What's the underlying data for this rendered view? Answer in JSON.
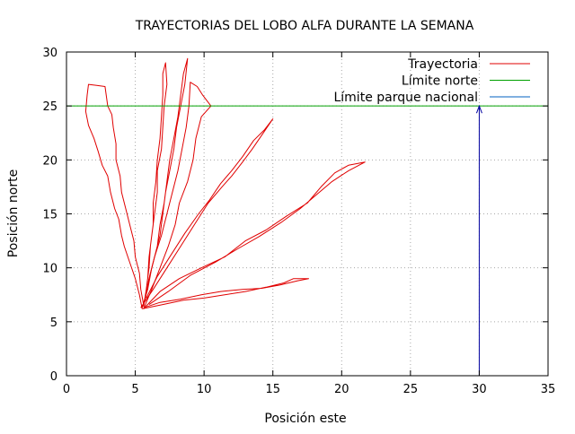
{
  "chart_data": {
    "type": "line",
    "title": "TRAYECTORIAS DEL LOBO ALFA DURANTE LA SEMANA",
    "xlabel": "Posición este",
    "ylabel": "Posición norte",
    "xlim": [
      0,
      35
    ],
    "ylim": [
      0,
      30
    ],
    "xticks": [
      0,
      5,
      10,
      15,
      20,
      25,
      30,
      35
    ],
    "yticks": [
      0,
      5,
      10,
      15,
      20,
      25,
      30
    ],
    "grid": true,
    "legend_position": "top-right",
    "legend": [
      {
        "label": "Trayectoria",
        "color": "#e00000"
      },
      {
        "label": "Límite norte",
        "color": "#00a000"
      },
      {
        "label": "Límite parque nacional",
        "color": "#0060c0"
      }
    ],
    "series": [
      {
        "name": "Trayectoria",
        "color": "#e00000",
        "paths": [
          [
            [
              5.5,
              6.2
            ],
            [
              5.3,
              7.5
            ],
            [
              5.0,
              9.0
            ],
            [
              4.6,
              10.5
            ],
            [
              4.2,
              12.0
            ],
            [
              4.0,
              13.0
            ],
            [
              3.8,
              14.5
            ],
            [
              3.5,
              15.5
            ],
            [
              3.2,
              17.0
            ],
            [
              3.0,
              18.5
            ],
            [
              2.6,
              19.5
            ],
            [
              2.3,
              20.8
            ],
            [
              2.0,
              22.0
            ],
            [
              1.6,
              23.2
            ],
            [
              1.4,
              24.5
            ],
            [
              1.5,
              26.0
            ],
            [
              1.6,
              27.0
            ],
            [
              2.2,
              26.9
            ],
            [
              2.8,
              26.8
            ],
            [
              3.0,
              25.0
            ],
            [
              3.3,
              24.2
            ],
            [
              3.4,
              23.0
            ],
            [
              3.6,
              21.5
            ],
            [
              3.6,
              20.0
            ],
            [
              3.9,
              18.5
            ],
            [
              4.0,
              17.0
            ],
            [
              4.3,
              15.5
            ],
            [
              4.6,
              14.0
            ],
            [
              4.9,
              12.5
            ],
            [
              5.0,
              11.0
            ],
            [
              5.3,
              9.5
            ],
            [
              5.4,
              8.0
            ],
            [
              5.6,
              6.6
            ]
          ],
          [
            [
              5.6,
              6.4
            ],
            [
              5.8,
              8.0
            ],
            [
              6.0,
              10.0
            ],
            [
              6.1,
              12.0
            ],
            [
              6.3,
              14.0
            ],
            [
              6.3,
              16.0
            ],
            [
              6.5,
              18.0
            ],
            [
              6.6,
              20.0
            ],
            [
              6.8,
              22.0
            ],
            [
              6.9,
              24.0
            ],
            [
              7.0,
              26.0
            ],
            [
              7.0,
              28.0
            ],
            [
              7.2,
              29.0
            ],
            [
              7.3,
              27.0
            ],
            [
              7.1,
              25.0
            ],
            [
              7.0,
              23.0
            ],
            [
              6.9,
              21.0
            ],
            [
              6.6,
              19.0
            ],
            [
              6.6,
              17.0
            ],
            [
              6.4,
              15.0
            ],
            [
              6.2,
              13.0
            ],
            [
              6.0,
              11.0
            ],
            [
              5.9,
              9.0
            ],
            [
              5.7,
              7.0
            ]
          ],
          [
            [
              5.5,
              6.3
            ],
            [
              5.9,
              8.0
            ],
            [
              6.2,
              10.0
            ],
            [
              6.6,
              12.0
            ],
            [
              6.8,
              14.0
            ],
            [
              7.1,
              16.0
            ],
            [
              7.3,
              18.0
            ],
            [
              7.5,
              20.0
            ],
            [
              7.8,
              22.0
            ],
            [
              8.1,
              24.0
            ],
            [
              8.3,
              26.0
            ],
            [
              8.5,
              28.0
            ],
            [
              8.8,
              29.4
            ],
            [
              8.6,
              27.0
            ],
            [
              8.3,
              25.0
            ],
            [
              8.0,
              23.0
            ],
            [
              7.8,
              21.0
            ],
            [
              7.5,
              19.0
            ],
            [
              7.2,
              17.0
            ],
            [
              7.0,
              15.0
            ],
            [
              6.8,
              13.0
            ],
            [
              6.4,
              11.0
            ],
            [
              6.0,
              9.0
            ],
            [
              5.7,
              7.0
            ]
          ],
          [
            [
              5.6,
              6.2
            ],
            [
              6.2,
              8.0
            ],
            [
              6.8,
              10.0
            ],
            [
              7.4,
              12.0
            ],
            [
              7.9,
              14.0
            ],
            [
              8.2,
              16.0
            ],
            [
              8.8,
              18.0
            ],
            [
              9.2,
              20.0
            ],
            [
              9.4,
              22.0
            ],
            [
              9.8,
              24.0
            ],
            [
              10.5,
              25.0
            ],
            [
              9.9,
              26.0
            ],
            [
              9.5,
              26.8
            ],
            [
              9.0,
              27.2
            ],
            [
              8.9,
              25.0
            ],
            [
              8.7,
              23.0
            ],
            [
              8.4,
              21.0
            ],
            [
              8.1,
              19.0
            ],
            [
              7.7,
              17.0
            ],
            [
              7.3,
              15.0
            ],
            [
              6.9,
              13.0
            ],
            [
              6.4,
              11.0
            ],
            [
              6.0,
              9.0
            ],
            [
              5.7,
              7.0
            ]
          ],
          [
            [
              5.4,
              6.3
            ],
            [
              6.3,
              8.0
            ],
            [
              7.3,
              10.0
            ],
            [
              8.3,
              12.0
            ],
            [
              9.3,
              14.0
            ],
            [
              10.3,
              16.0
            ],
            [
              11.3,
              17.5
            ],
            [
              12.0,
              18.5
            ],
            [
              12.8,
              19.8
            ],
            [
              13.5,
              21.0
            ],
            [
              14.3,
              22.5
            ],
            [
              15.0,
              23.8
            ],
            [
              14.4,
              22.8
            ],
            [
              13.6,
              21.8
            ],
            [
              12.8,
              20.3
            ],
            [
              12.0,
              19.0
            ],
            [
              11.2,
              17.8
            ],
            [
              10.4,
              16.3
            ],
            [
              9.6,
              15.0
            ],
            [
              8.6,
              13.2
            ],
            [
              7.6,
              11.2
            ],
            [
              6.6,
              9.2
            ],
            [
              5.8,
              7.2
            ]
          ],
          [
            [
              5.6,
              6.2
            ],
            [
              6.8,
              7.8
            ],
            [
              8.2,
              9.0
            ],
            [
              9.8,
              10.0
            ],
            [
              11.5,
              11.0
            ],
            [
              13.0,
              12.5
            ],
            [
              14.5,
              13.5
            ],
            [
              16.0,
              14.8
            ],
            [
              17.5,
              16.0
            ],
            [
              18.5,
              17.5
            ],
            [
              19.5,
              18.8
            ],
            [
              20.5,
              19.5
            ],
            [
              21.7,
              19.8
            ],
            [
              20.5,
              19.0
            ],
            [
              19.3,
              18.0
            ],
            [
              18.2,
              16.8
            ],
            [
              17.0,
              15.5
            ],
            [
              15.6,
              14.2
            ],
            [
              14.0,
              12.9
            ],
            [
              12.5,
              11.8
            ],
            [
              10.8,
              10.5
            ],
            [
              9.0,
              9.3
            ],
            [
              7.4,
              7.8
            ],
            [
              6.0,
              6.6
            ]
          ],
          [
            [
              5.5,
              6.2
            ],
            [
              7.0,
              6.6
            ],
            [
              8.5,
              7.0
            ],
            [
              10.0,
              7.2
            ],
            [
              11.5,
              7.5
            ],
            [
              13.0,
              7.8
            ],
            [
              14.5,
              8.2
            ],
            [
              15.8,
              8.6
            ],
            [
              16.5,
              9.0
            ],
            [
              17.6,
              9.0
            ],
            [
              16.8,
              8.8
            ],
            [
              15.5,
              8.4
            ],
            [
              14.2,
              8.1
            ],
            [
              12.8,
              8.0
            ],
            [
              11.2,
              7.8
            ],
            [
              9.8,
              7.5
            ],
            [
              8.3,
              7.1
            ],
            [
              6.8,
              6.8
            ],
            [
              5.6,
              6.3
            ]
          ]
        ]
      },
      {
        "name": "Límite norte",
        "color": "#00a000",
        "points": [
          [
            0,
            25
          ],
          [
            35,
            25
          ]
        ]
      },
      {
        "name": "Límite parque nacional",
        "color": "#0060c0",
        "points": [
          [
            30,
            0
          ],
          [
            30,
            25
          ]
        ]
      }
    ]
  }
}
